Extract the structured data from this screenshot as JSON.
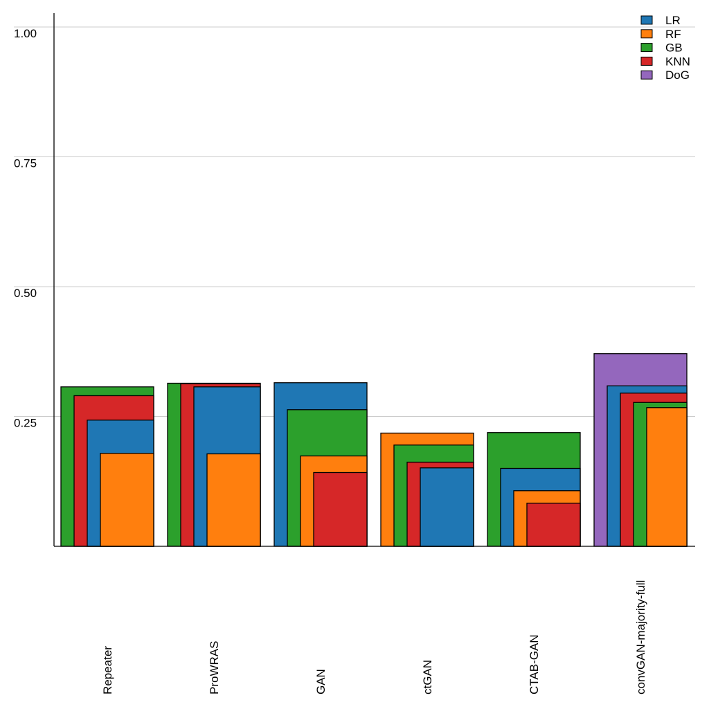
{
  "chart_data": {
    "type": "bar",
    "style": "nested-overlapping",
    "title": "",
    "xlabel": "",
    "ylabel": "",
    "ylim": [
      0,
      1.04
    ],
    "yticks": [
      0.25,
      0.5,
      0.75,
      1.0
    ],
    "ytick_labels": [
      "0.25",
      "0.50",
      "0.75",
      "1.00"
    ],
    "grid": "horizontal",
    "legend_position": "top-right",
    "categories": [
      "Repeater",
      "ProWRAS",
      "GAN",
      "ctGAN",
      "CTAB-GAN",
      "convGAN-majority-full"
    ],
    "series": [
      {
        "name": "LR",
        "color": "#1f77b4",
        "values": [
          0.243,
          0.307,
          0.315,
          0.151,
          0.15,
          0.309
        ]
      },
      {
        "name": "RF",
        "color": "#ff7f0e",
        "values": [
          0.179,
          0.178,
          0.174,
          0.218,
          0.107,
          0.267
        ]
      },
      {
        "name": "GB",
        "color": "#2ca02c",
        "values": [
          0.307,
          0.314,
          0.263,
          0.195,
          0.219,
          0.277
        ]
      },
      {
        "name": "KNN",
        "color": "#d62728",
        "values": [
          0.29,
          0.313,
          0.142,
          0.162,
          0.083,
          0.295
        ]
      },
      {
        "name": "DoG",
        "color": "#9467bd",
        "values": [
          null,
          null,
          null,
          null,
          null,
          0.371
        ]
      }
    ]
  }
}
